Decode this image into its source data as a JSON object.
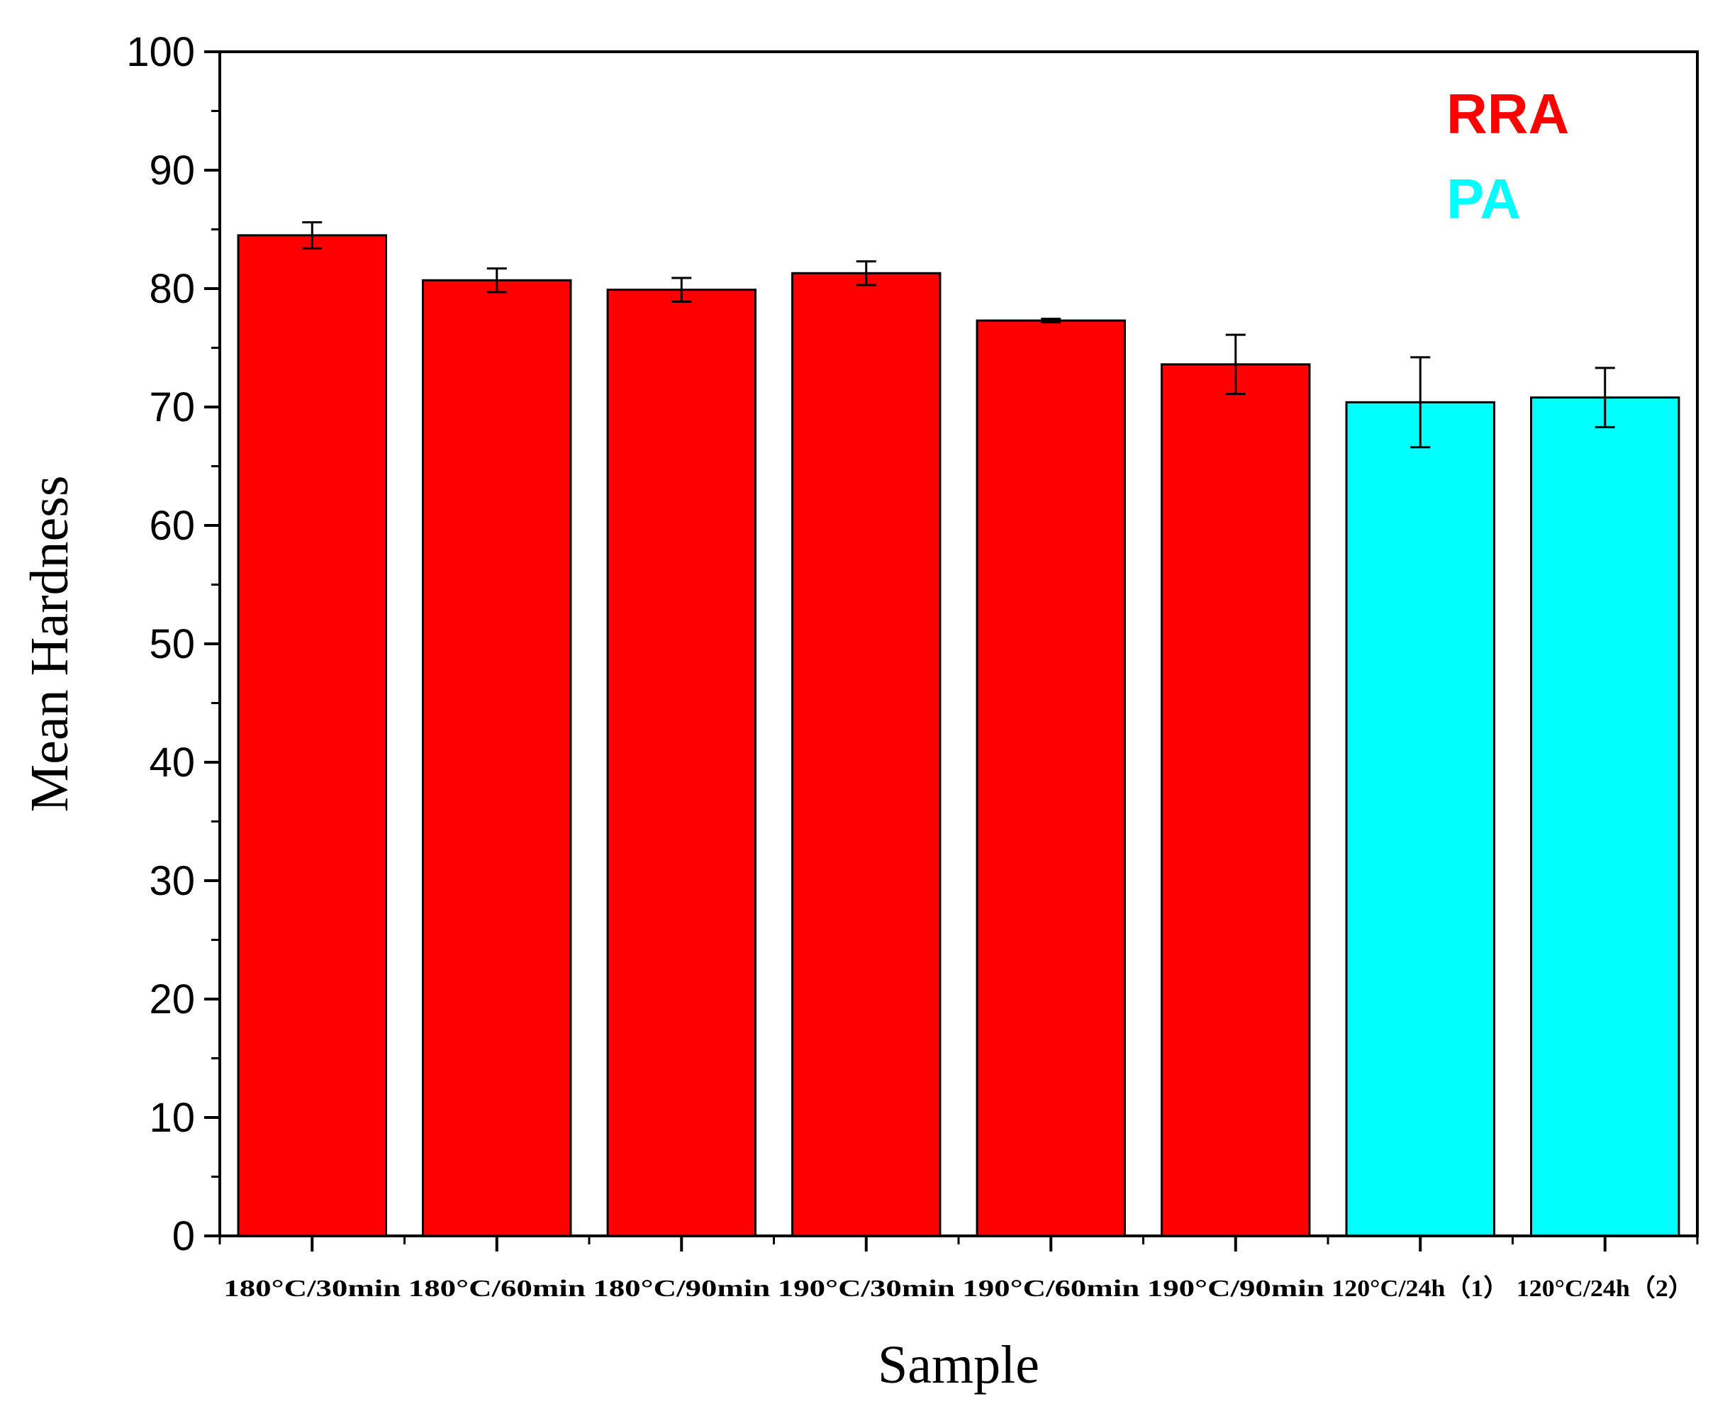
{
  "chart_data": {
    "type": "bar",
    "title": "",
    "xlabel": "Sample",
    "ylabel": "Mean Hardness",
    "ylim": [
      0,
      100
    ],
    "yticks": [
      0,
      10,
      20,
      30,
      40,
      50,
      60,
      70,
      80,
      90,
      100
    ],
    "categories": [
      "180°C/30min",
      "180°C/60min",
      "180°C/90min",
      "190°C/30min",
      "190°C/60min",
      "190°C/90min",
      "120°C/24h（1）",
      "120°C/24h（2）"
    ],
    "values": [
      84.5,
      80.7,
      79.9,
      81.3,
      77.3,
      73.6,
      70.4,
      70.8
    ],
    "errors": [
      1.1,
      1.0,
      1.0,
      1.0,
      0.15,
      2.5,
      3.8,
      2.5
    ],
    "groups": [
      "RRA",
      "RRA",
      "RRA",
      "RRA",
      "RRA",
      "RRA",
      "PA",
      "PA"
    ],
    "legend": [
      {
        "label": "RRA",
        "color": "#ff0000"
      },
      {
        "label": "PA",
        "color": "#00ffff"
      }
    ],
    "legend_position": "top-right",
    "grid": false
  }
}
